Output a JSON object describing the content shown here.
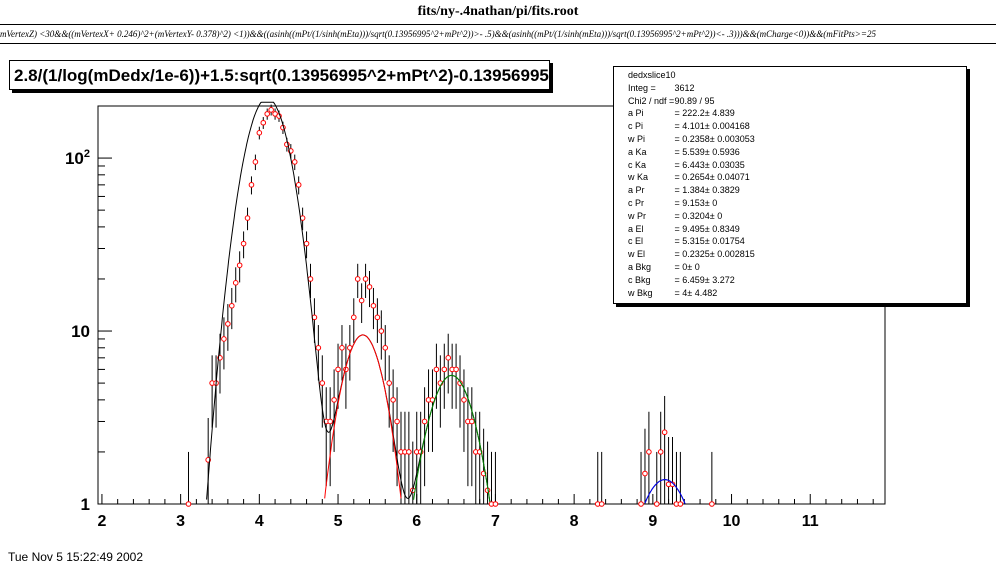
{
  "window": {
    "title": "fits/ny-.4nathan/pi/fits.root"
  },
  "cut_expression": "mVertexZ) <30&&((mVertexX+ 0.246)^2+(mVertexY- 0.378)^2) <1))&&((asinh((mPt/(1/sinh(mEta)))/sqrt(0.13956995^2+mPt^2))>- .5)&&(asinh((mPt/(1/sinh(mEta)))/sqrt(0.13956995^2+mPt^2))<- .3)))&&(mCharge<0))&&(mFitPts>=25",
  "plot_title": "2.8/(1/log(mDedx/1e-6))+1.5:sqrt(0.13956995^2+mPt^2)-0.13956995",
  "stats": {
    "name": "dedxslice10",
    "rows": [
      {
        "label": "Integ =",
        "value": "3612"
      },
      {
        "label": "Chi2 / ndf =",
        "value": "90.89 / 95"
      },
      {
        "label": "a Pi",
        "value": "= 222.2± 4.839"
      },
      {
        "label": "c Pi",
        "value": "= 4.101± 0.004168"
      },
      {
        "label": "w Pi",
        "value": "= 0.2358± 0.003053"
      },
      {
        "label": "a Ka",
        "value": "= 5.539± 0.5936"
      },
      {
        "label": "c Ka",
        "value": "= 6.443± 0.03035"
      },
      {
        "label": "w Ka",
        "value": "= 0.2654± 0.04071"
      },
      {
        "label": "a Pr",
        "value": "= 1.384± 0.3829"
      },
      {
        "label": "c Pr",
        "value": "= 9.153±   0"
      },
      {
        "label": "w Pr",
        "value": "= 0.3204±   0"
      },
      {
        "label": "a El",
        "value": "= 9.495± 0.8349"
      },
      {
        "label": "c El",
        "value": "= 5.315± 0.01754"
      },
      {
        "label": "w El",
        "value": "= 0.2325± 0.002815"
      },
      {
        "label": "a Bkg",
        "value": "=    0±    0"
      },
      {
        "label": "c Bkg",
        "value": "= 6.459± 3.272"
      },
      {
        "label": "w Bkg",
        "value": "=    4± 4.482"
      }
    ]
  },
  "timestamp": "Tue Nov  5 15:22:49 2002",
  "chart_data": {
    "type": "scatter",
    "title": "2.8/(1/log(mDedx/1e-6))+1.5:sqrt(0.13956995^2+mPt^2)-0.13956995",
    "xlim": [
      1.95,
      11.95
    ],
    "ylim": [
      1,
      200
    ],
    "yscale": "log",
    "x_ticks": [
      2,
      3,
      4,
      5,
      6,
      7,
      8,
      9,
      10,
      11
    ],
    "y_ticks": [
      {
        "value": 1,
        "label": "1"
      },
      {
        "value": 10,
        "label": "10"
      },
      {
        "value": 100,
        "label": "10^2"
      }
    ],
    "grid": false,
    "series": [
      {
        "style": "points-with-error-bars",
        "color": "#ff0000",
        "points": [
          [
            3.1,
            1.0
          ],
          [
            3.35,
            1.8
          ],
          [
            3.4,
            5.0
          ],
          [
            3.45,
            5.0
          ],
          [
            3.5,
            7.0
          ],
          [
            3.55,
            9.0
          ],
          [
            3.6,
            11
          ],
          [
            3.65,
            14
          ],
          [
            3.7,
            19
          ],
          [
            3.75,
            24
          ],
          [
            3.8,
            32
          ],
          [
            3.85,
            45
          ],
          [
            3.9,
            70
          ],
          [
            3.95,
            95
          ],
          [
            4.0,
            140
          ],
          [
            4.05,
            160
          ],
          [
            4.1,
            180
          ],
          [
            4.15,
            190
          ],
          [
            4.2,
            180
          ],
          [
            4.25,
            175
          ],
          [
            4.3,
            150
          ],
          [
            4.35,
            120
          ],
          [
            4.4,
            110
          ],
          [
            4.45,
            95
          ],
          [
            4.5,
            70
          ],
          [
            4.55,
            45
          ],
          [
            4.6,
            32
          ],
          [
            4.65,
            20
          ],
          [
            4.7,
            12
          ],
          [
            4.75,
            8
          ],
          [
            4.8,
            5
          ],
          [
            4.85,
            3
          ],
          [
            4.9,
            3
          ],
          [
            4.95,
            4
          ],
          [
            5.0,
            6
          ],
          [
            5.05,
            8
          ],
          [
            5.1,
            6
          ],
          [
            5.15,
            8
          ],
          [
            5.2,
            12
          ],
          [
            5.25,
            20
          ],
          [
            5.3,
            15
          ],
          [
            5.35,
            20
          ],
          [
            5.4,
            18
          ],
          [
            5.45,
            14
          ],
          [
            5.5,
            12
          ],
          [
            5.55,
            10
          ],
          [
            5.6,
            8
          ],
          [
            5.65,
            5
          ],
          [
            5.7,
            4
          ],
          [
            5.75,
            3
          ],
          [
            5.8,
            2
          ],
          [
            5.85,
            2
          ],
          [
            5.9,
            2
          ],
          [
            5.95,
            1.2
          ],
          [
            6.0,
            2
          ],
          [
            6.05,
            2
          ],
          [
            6.1,
            3
          ],
          [
            6.15,
            4
          ],
          [
            6.2,
            4
          ],
          [
            6.25,
            6
          ],
          [
            6.3,
            5
          ],
          [
            6.35,
            6
          ],
          [
            6.4,
            7
          ],
          [
            6.45,
            6
          ],
          [
            6.5,
            6
          ],
          [
            6.55,
            5
          ],
          [
            6.6,
            4
          ],
          [
            6.65,
            3
          ],
          [
            6.7,
            3
          ],
          [
            6.75,
            2
          ],
          [
            6.8,
            2
          ],
          [
            6.85,
            1.5
          ],
          [
            6.9,
            1.2
          ],
          [
            6.95,
            1.0
          ],
          [
            7.0,
            1.0
          ],
          [
            8.3,
            1.0
          ],
          [
            8.35,
            1.0
          ],
          [
            8.85,
            1.0
          ],
          [
            8.9,
            1.5
          ],
          [
            8.95,
            2.0
          ],
          [
            9.05,
            1.0
          ],
          [
            9.1,
            2.0
          ],
          [
            9.15,
            2.6
          ],
          [
            9.2,
            1.3
          ],
          [
            9.25,
            1.3
          ],
          [
            9.3,
            1.0
          ],
          [
            9.35,
            1.0
          ],
          [
            9.75,
            1.0
          ]
        ]
      },
      {
        "name": "total fit",
        "style": "line",
        "color": "#000000",
        "from_params": true
      },
      {
        "name": "El",
        "style": "line",
        "color": "#ff0000",
        "from_params": true
      },
      {
        "name": "Ka",
        "style": "line",
        "color": "#008800",
        "from_params": true
      },
      {
        "name": "Pr",
        "style": "line",
        "color": "#0000ff",
        "from_params": true
      }
    ],
    "fit_params": {
      "a_pi": 222.2,
      "c_pi": 4.101,
      "w_pi": 0.2358,
      "a_ka": 5.539,
      "c_ka": 6.443,
      "w_ka": 0.2654,
      "a_pr": 1.384,
      "c_pr": 9.153,
      "w_pr": 0.3204,
      "a_el": 9.495,
      "c_el": 5.315,
      "w_el": 0.2325
    }
  }
}
